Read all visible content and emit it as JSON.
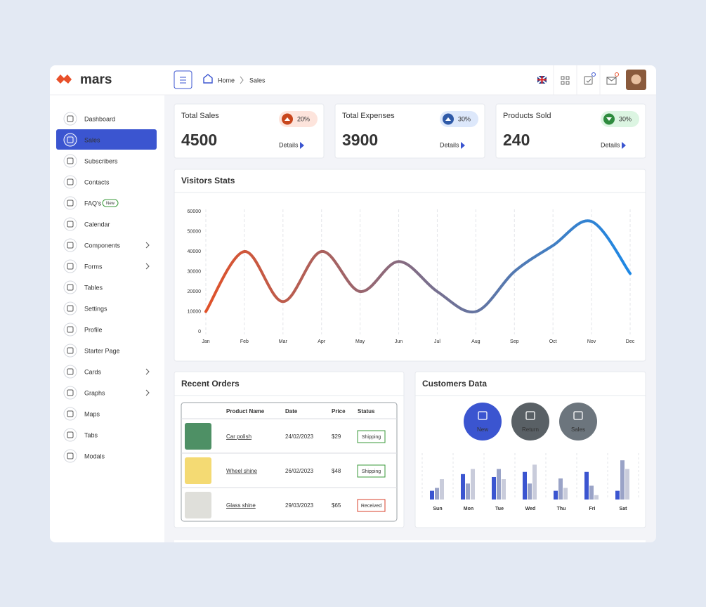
{
  "brand": "mars",
  "sidebar": {
    "items": [
      {
        "label": "Dashboard"
      },
      {
        "label": "Sales",
        "active": true
      },
      {
        "label": "Subscribers"
      },
      {
        "label": "Contacts"
      },
      {
        "label": "FAQ's",
        "badge": "New"
      },
      {
        "label": "Calendar"
      },
      {
        "label": "Components",
        "submenu": true
      },
      {
        "label": "Forms",
        "submenu": true
      },
      {
        "label": "Tables"
      },
      {
        "label": "Settings"
      },
      {
        "label": "Profile"
      },
      {
        "label": "Starter Page"
      },
      {
        "label": "Cards",
        "submenu": true
      },
      {
        "label": "Graphs",
        "submenu": true
      },
      {
        "label": "Maps"
      },
      {
        "label": "Tabs"
      },
      {
        "label": "Modals"
      }
    ]
  },
  "breadcrumb": [
    "Home",
    "Sales"
  ],
  "stats": [
    {
      "title": "Total Sales",
      "value": 4500,
      "change": "20%",
      "trend": "up",
      "color": "#c8461c",
      "bg": "#fde4dc",
      "link": "Details"
    },
    {
      "title": "Total Expenses",
      "value": 3900,
      "change": "30%",
      "trend": "up",
      "color": "#2f5aa8",
      "bg": "#dde8fb",
      "link": "Details"
    },
    {
      "title": "Products Sold",
      "value": 240,
      "change": "30%",
      "trend": "down",
      "color": "#2e8b3e",
      "bg": "#dcf5e2",
      "link": "Details"
    }
  ],
  "visitors": {
    "title": "Visitors Stats",
    "chart_data": {
      "type": "line",
      "categories": [
        "Jan",
        "Feb",
        "Mar",
        "Apr",
        "May",
        "Jun",
        "Jul",
        "Aug",
        "Sep",
        "Oct",
        "Nov",
        "Dec"
      ],
      "values": [
        10000,
        40000,
        15000,
        40000,
        20000,
        35000,
        20000,
        10000,
        30000,
        43000,
        55000,
        29000
      ],
      "ylim": [
        0,
        60000
      ],
      "yticks": [
        0,
        10000,
        20000,
        30000,
        40000,
        50000,
        60000
      ],
      "gradient": [
        "#e0522a",
        "#1e88e5"
      ],
      "grid": true
    }
  },
  "orders": {
    "title": "Recent Orders",
    "table": {
      "headers": [
        "Product Name",
        "Date",
        "Price",
        "Status"
      ],
      "rows": [
        {
          "product": "Car polish",
          "date": "24/02/2023",
          "price": "$29",
          "status": "Shipping",
          "status_color": "#3a9a3a"
        },
        {
          "product": "Wheel shine",
          "date": "26/02/2023",
          "price": "$48",
          "status": "Shipping",
          "status_color": "#3a9a3a"
        },
        {
          "product": "Glass shine",
          "date": "29/03/2023",
          "price": "$65",
          "status": "Received",
          "status_color": "#d9412b"
        }
      ]
    }
  },
  "customers": {
    "title": "Customers Data",
    "buttons": [
      {
        "label": "New",
        "color": "#3b55d0"
      },
      {
        "label": "Return",
        "color": "#596065"
      },
      {
        "label": "Sales",
        "color": "#6c757d"
      }
    ],
    "chart_data": {
      "type": "bar",
      "categories": [
        "Sun",
        "Mon",
        "Tue",
        "Wed",
        "Thu",
        "Fri",
        "Sat"
      ],
      "series": [
        {
          "color": "#3b55d0",
          "values": [
            12,
            35,
            31,
            38,
            12,
            38,
            12
          ]
        },
        {
          "color": "#9aa3c7",
          "values": [
            16,
            22,
            42,
            22,
            29,
            19,
            54
          ]
        },
        {
          "color": "#c9ccdb",
          "values": [
            28,
            42,
            28,
            48,
            16,
            6,
            42
          ]
        }
      ],
      "ylim": [
        0,
        60
      ]
    }
  }
}
